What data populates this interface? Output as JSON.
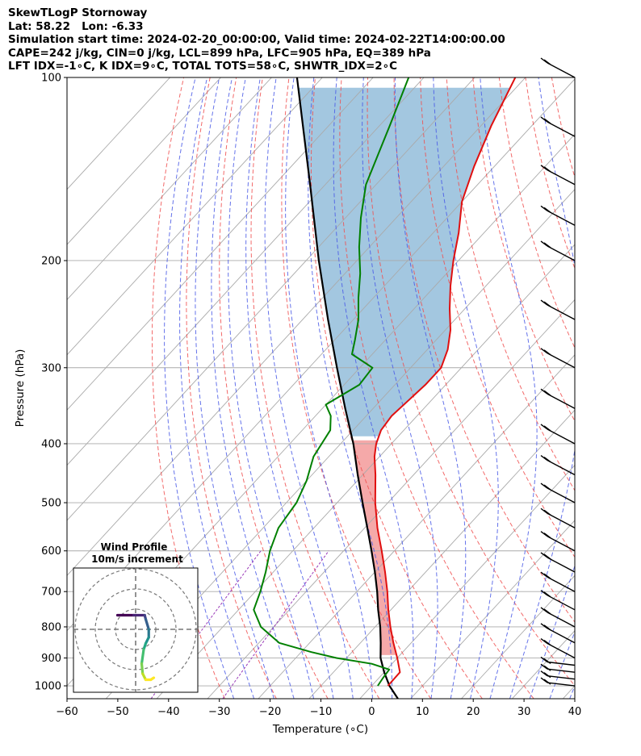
{
  "header": {
    "line1": "SkewTLogP Stornoway",
    "line2": "Lat: 58.22   Lon: -6.33",
    "line3": "Simulation start time: 2024-02-20_00:00:00, Valid time: 2024-02-22T14:00:00.00",
    "line4": "CAPE=242 j/kg, CIN=0 j/kg, LCL=899 hPa, LFC=905 hPa, EQ=389 hPa",
    "line5": "LFT IDX=-1∘C, K IDX=9∘C, TOTAL TOTS=58∘C, SHWTR_IDX=2∘C"
  },
  "colors": {
    "temperature": "#e01010",
    "dewpoint": "#008000",
    "parcel": "#000000",
    "cape_fill": "#9ec4de",
    "cin_fill": "#f4a0a0",
    "dry_adiabat": "#f05050",
    "moist_adiabat": "#4a5ae6",
    "mixing_ratio": "#9a3ab8",
    "isotherm": "#aaaaaa"
  },
  "chart_data": {
    "type": "line",
    "title": "",
    "xlabel": "Temperature (∘C)",
    "ylabel": "Pressure (hPa)",
    "xlim": [
      -60,
      40
    ],
    "ylim": [
      1050,
      100
    ],
    "y_scale": "log",
    "skew": true,
    "grid": true,
    "x_ticks": [
      "−60",
      "−50",
      "−40",
      "−30",
      "−20",
      "−10",
      "0",
      "10",
      "20",
      "30",
      "40"
    ],
    "y_ticks": [
      "100",
      "200",
      "300",
      "400",
      "500",
      "600",
      "700",
      "800",
      "900",
      "1000"
    ],
    "series": [
      {
        "name": "Temperature",
        "points": [
          [
            1000,
            3.2
          ],
          [
            950,
            3.1
          ],
          [
            900,
            0.0
          ],
          [
            850,
            -3.5
          ],
          [
            800,
            -7.0
          ],
          [
            750,
            -10.5
          ],
          [
            700,
            -14.0
          ],
          [
            650,
            -18.0
          ],
          [
            600,
            -22.5
          ],
          [
            550,
            -27.5
          ],
          [
            500,
            -32.5
          ],
          [
            450,
            -37.5
          ],
          [
            420,
            -41.0
          ],
          [
            400,
            -43.0
          ],
          [
            380,
            -44.5
          ],
          [
            360,
            -45.0
          ],
          [
            340,
            -44.5
          ],
          [
            320,
            -44.0
          ],
          [
            300,
            -44.0
          ],
          [
            280,
            -46.0
          ],
          [
            260,
            -49.0
          ],
          [
            240,
            -53.0
          ],
          [
            220,
            -57.0
          ],
          [
            200,
            -61.0
          ],
          [
            180,
            -65.0
          ],
          [
            160,
            -70.0
          ],
          [
            140,
            -74.0
          ],
          [
            120,
            -78.0
          ],
          [
            100,
            -82.0
          ]
        ]
      },
      {
        "name": "Dewpoint",
        "points": [
          [
            1000,
            1.2
          ],
          [
            970,
            0.8
          ],
          [
            940,
            0.5
          ],
          [
            920,
            -4.0
          ],
          [
            900,
            -12.0
          ],
          [
            880,
            -18.0
          ],
          [
            850,
            -26.0
          ],
          [
            800,
            -32.5
          ],
          [
            750,
            -37.0
          ],
          [
            700,
            -39.0
          ],
          [
            650,
            -41.5
          ],
          [
            600,
            -44.5
          ],
          [
            550,
            -47.0
          ],
          [
            500,
            -48.0
          ],
          [
            460,
            -50.0
          ],
          [
            420,
            -53.0
          ],
          [
            380,
            -54.5
          ],
          [
            360,
            -57.0
          ],
          [
            345,
            -60.0
          ],
          [
            320,
            -57.0
          ],
          [
            300,
            -57.5
          ],
          [
            285,
            -64.0
          ],
          [
            270,
            -66.0
          ],
          [
            250,
            -69.0
          ],
          [
            230,
            -73.0
          ],
          [
            210,
            -77.0
          ],
          [
            190,
            -82.0
          ],
          [
            170,
            -87.0
          ],
          [
            150,
            -92.0
          ],
          [
            120,
            -98.0
          ],
          [
            100,
            -103.0
          ]
        ]
      },
      {
        "name": "Parcel",
        "points": [
          [
            1050,
            7.5
          ],
          [
            1000,
            3.5
          ],
          [
            950,
            0.0
          ],
          [
            900,
            -3.3
          ],
          [
            850,
            -6.0
          ],
          [
            800,
            -9.0
          ],
          [
            750,
            -12.5
          ],
          [
            700,
            -16.0
          ],
          [
            650,
            -20.0
          ],
          [
            600,
            -24.5
          ],
          [
            550,
            -29.5
          ],
          [
            500,
            -35.0
          ],
          [
            450,
            -41.0
          ],
          [
            400,
            -47.5
          ],
          [
            350,
            -55.5
          ],
          [
            300,
            -64.5
          ],
          [
            250,
            -75.0
          ],
          [
            200,
            -87.5
          ],
          [
            150,
            -103.0
          ],
          [
            100,
            -125.0
          ]
        ]
      }
    ],
    "inset": {
      "title_line1": "Wind Profile",
      "title_line2": "10m/s increment",
      "rings_ms": [
        10,
        20,
        30
      ],
      "hodograph": [
        [
          -9,
          7
        ],
        [
          -1,
          7
        ],
        [
          4.5,
          7
        ],
        [
          5,
          5
        ],
        [
          6.5,
          0
        ],
        [
          6.5,
          -4
        ],
        [
          5,
          -7
        ],
        [
          4,
          -10
        ],
        [
          3,
          -17
        ],
        [
          3.5,
          -22
        ],
        [
          5,
          -25
        ],
        [
          7.5,
          -25
        ],
        [
          9,
          -24
        ]
      ]
    },
    "wind_barbs": [
      1000,
      975,
      950,
      925,
      900,
      850,
      800,
      750,
      700,
      650,
      600,
      550,
      500,
      450,
      400,
      350,
      300,
      250,
      200,
      175,
      150,
      125,
      100
    ]
  }
}
